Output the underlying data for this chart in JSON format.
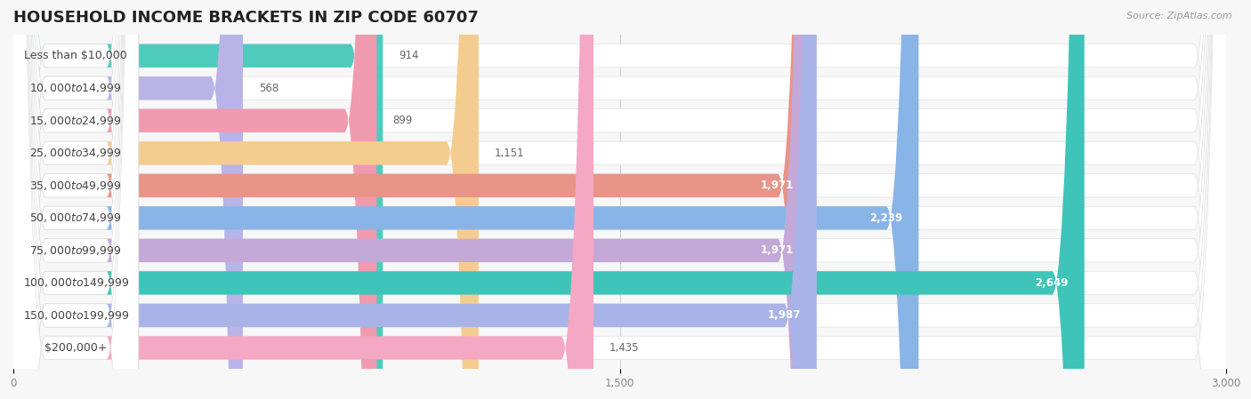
{
  "title": "HOUSEHOLD INCOME BRACKETS IN ZIP CODE 60707",
  "source": "Source: ZipAtlas.com",
  "categories": [
    "Less than $10,000",
    "$10,000 to $14,999",
    "$15,000 to $24,999",
    "$25,000 to $34,999",
    "$35,000 to $49,999",
    "$50,000 to $74,999",
    "$75,000 to $99,999",
    "$100,000 to $149,999",
    "$150,000 to $199,999",
    "$200,000+"
  ],
  "values": [
    914,
    568,
    899,
    1151,
    1971,
    2239,
    1971,
    2649,
    1987,
    1435
  ],
  "bar_colors": [
    "#4ecbbd",
    "#b8b4e8",
    "#f09ab0",
    "#f5cc90",
    "#e89488",
    "#88b4e8",
    "#c4a8d8",
    "#3ec4b8",
    "#a8b4e8",
    "#f5a8c4"
  ],
  "background_color": "#f7f7f7",
  "row_bg_color": "#ffffff",
  "label_bg_color": "#ffffff",
  "xlim": [
    0,
    3000
  ],
  "xticks": [
    0,
    1500,
    3000
  ],
  "title_fontsize": 13,
  "label_fontsize": 9,
  "value_fontsize": 8.5
}
